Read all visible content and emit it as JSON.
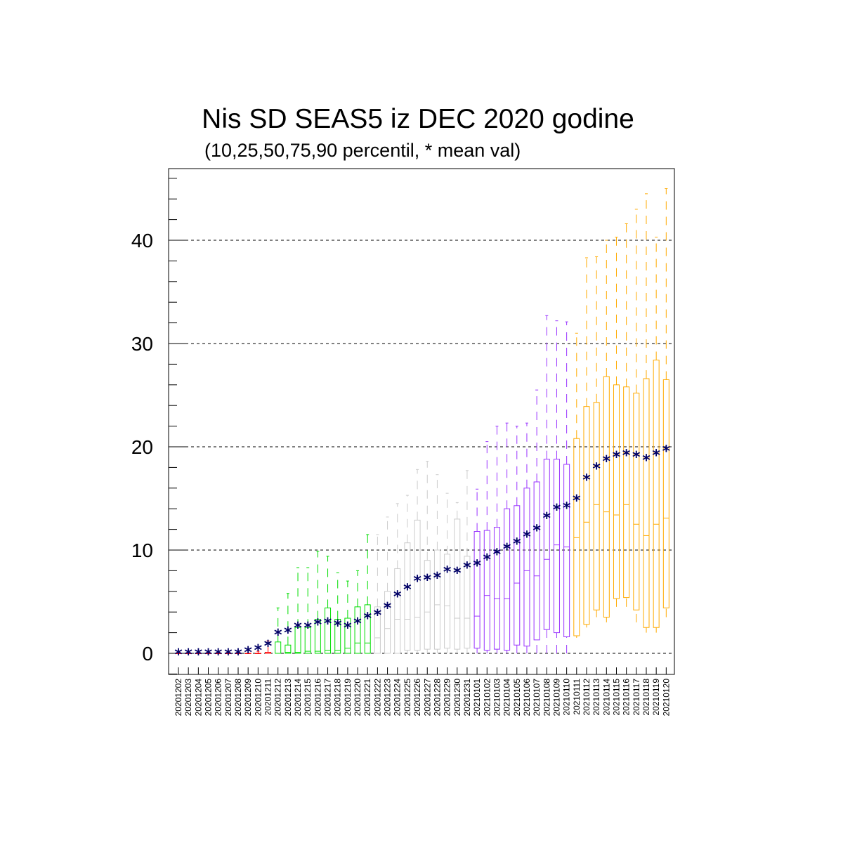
{
  "chart_data": {
    "type": "boxplot",
    "title": "Nis SD SEAS5 iz DEC 2020 godine",
    "subtitle": "(10,25,50,75,90 percentil, * mean val)",
    "xlabel": "",
    "ylabel": "",
    "ylim": [
      -2,
      47
    ],
    "yticks": [
      0,
      10,
      20,
      30,
      40
    ],
    "grid": "dashed horizontal at major ticks",
    "legend": "none",
    "colors": {
      "red": "#ff0000",
      "green": "#00dd00",
      "gray": "#cccccc",
      "purple": "#9933ff",
      "orange": "#ffaa00",
      "mean_marker": "#000066"
    },
    "categories": [
      "20201202",
      "20201203",
      "20201204",
      "20201205",
      "20201206",
      "20201207",
      "20201208",
      "20201209",
      "20201210",
      "20201211",
      "20201212",
      "20201213",
      "20201214",
      "20201215",
      "20201216",
      "20201217",
      "20201218",
      "20201219",
      "20201220",
      "20201221",
      "20201222",
      "20201223",
      "20201224",
      "20201225",
      "20201226",
      "20201227",
      "20201228",
      "20201229",
      "20201230",
      "20201231",
      "20210101",
      "20210102",
      "20210103",
      "20210104",
      "20210105",
      "20210106",
      "20210107",
      "20210108",
      "20210109",
      "20210110",
      "20210111",
      "20210112",
      "20210113",
      "20210114",
      "20210115",
      "20210116",
      "20210117",
      "20210118",
      "20210119",
      "20210120"
    ],
    "p10": [
      0,
      0,
      0,
      0,
      0,
      0,
      0,
      0,
      0,
      0,
      0,
      0,
      0,
      0,
      0,
      0,
      0,
      0,
      0,
      0,
      0,
      0,
      0,
      0,
      0,
      0,
      0,
      0,
      0,
      0,
      0,
      0,
      0,
      0,
      0,
      0,
      0,
      0,
      0,
      0,
      1.5,
      2.5,
      3.5,
      3.0,
      4.5,
      4.5,
      3.0,
      2.0,
      2.0,
      3.5
    ],
    "p25": [
      0,
      0,
      0,
      0,
      0,
      0,
      0,
      0,
      0,
      0,
      0,
      0,
      0,
      0,
      0,
      0,
      0,
      0,
      0,
      0,
      0,
      0,
      0,
      0.3,
      0.3,
      0.4,
      0.4,
      0.5,
      0.4,
      0.5,
      0.5,
      0.3,
      0.4,
      0.3,
      0.8,
      0.7,
      1.3,
      2.3,
      2.0,
      1.6,
      1.7,
      2.8,
      4.2,
      3.5,
      5.3,
      5.4,
      4.2,
      2.5,
      2.5,
      4.4
    ],
    "p50": [
      0,
      0,
      0,
      0,
      0,
      0,
      0,
      0,
      0,
      0,
      0,
      0.1,
      0.1,
      0.2,
      0.2,
      0.3,
      0.3,
      0.5,
      1.0,
      1.0,
      1.5,
      2.4,
      3.3,
      3.3,
      3.5,
      4.0,
      4.7,
      4.6,
      3.4,
      3.4,
      3.6,
      5.6,
      5.3,
      5.3,
      6.8,
      8.0,
      7.5,
      9.1,
      10.5,
      10.3,
      11.2,
      12.7,
      14.4,
      13.7,
      13.4,
      14.4,
      12.5,
      11.4,
      12.5,
      13.1
    ],
    "p75": [
      0,
      0,
      0,
      0,
      0,
      0,
      0,
      0,
      0,
      0.1,
      1.1,
      0.8,
      2.5,
      2.5,
      3.3,
      4.4,
      3.3,
      3.4,
      4.5,
      4.7,
      4.5,
      6.0,
      8.2,
      10.7,
      12.9,
      9.0,
      10.0,
      9.6,
      13.0,
      9.4,
      11.8,
      11.9,
      12.2,
      14.0,
      14.3,
      16.0,
      16.6,
      18.8,
      18.8,
      18.3,
      20.8,
      23.9,
      24.3,
      26.8,
      26.0,
      25.8,
      25.2,
      26.6,
      28.4,
      26.5
    ],
    "p90": [
      0,
      0,
      0,
      0,
      0,
      0,
      0,
      0,
      0.2,
      1.2,
      4.4,
      5.8,
      8.3,
      8.3,
      9.9,
      9.4,
      7.8,
      7.0,
      8.0,
      11.5,
      11.5,
      13.2,
      14.5,
      15.3,
      17.8,
      18.6,
      17.3,
      15.5,
      14.6,
      17.7,
      15.9,
      20.5,
      22.0,
      22.3,
      22.0,
      22.3,
      25.5,
      32.7,
      32.2,
      32.1,
      31.0,
      38.3,
      38.4,
      40.0,
      40.3,
      41.6,
      43.0,
      44.5,
      40.3,
      45.0
    ],
    "mean": [
      0,
      0,
      0,
      0,
      0,
      0,
      0,
      0.2,
      0.4,
      0.8,
      1.9,
      2.1,
      2.6,
      2.6,
      2.9,
      3.0,
      2.8,
      2.6,
      3.0,
      3.5,
      3.8,
      4.5,
      5.6,
      6.3,
      7.1,
      7.2,
      7.4,
      8.0,
      7.9,
      8.4,
      8.6,
      9.2,
      9.7,
      10.2,
      10.7,
      11.4,
      12.0,
      13.2,
      14.0,
      14.2,
      14.9,
      16.9,
      18.0,
      18.7,
      19.1,
      19.3,
      19.1,
      18.8,
      19.3,
      19.7
    ],
    "color_groups": [
      {
        "color": "red",
        "from": "20201202",
        "to": "20201211"
      },
      {
        "color": "green",
        "from": "20201212",
        "to": "20201221"
      },
      {
        "color": "gray",
        "from": "20201222",
        "to": "20201231"
      },
      {
        "color": "purple",
        "from": "20210101",
        "to": "20210110"
      },
      {
        "color": "orange",
        "from": "20210111",
        "to": "20210120"
      }
    ]
  }
}
